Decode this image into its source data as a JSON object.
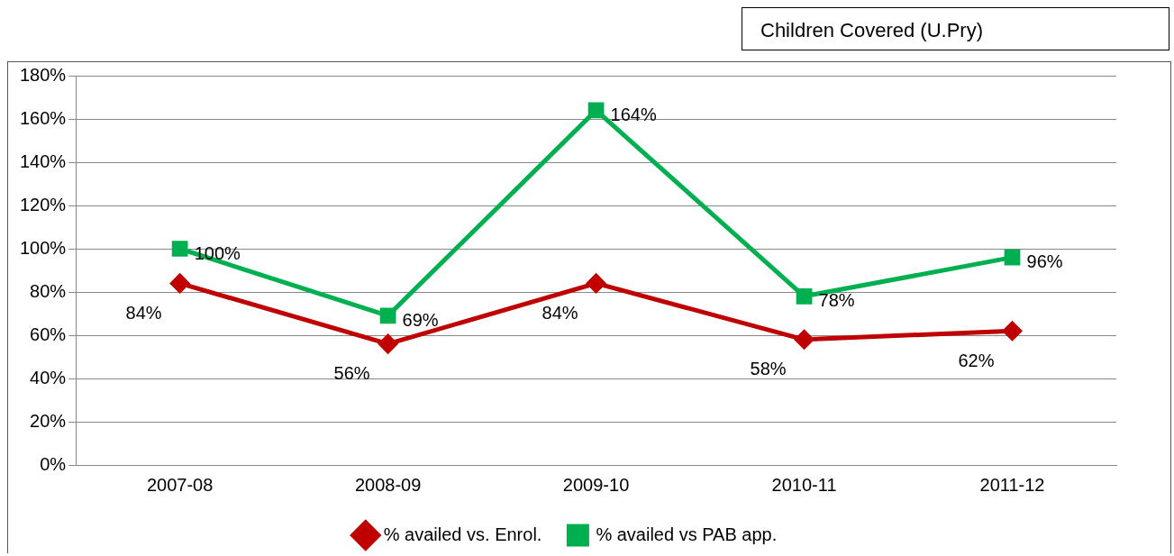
{
  "chart_data": {
    "type": "line",
    "title": "Children Covered (U.Pry)",
    "categories": [
      "2007-08",
      "2008-09",
      "2009-10",
      "2010-11",
      "2011-12"
    ],
    "series": [
      {
        "name": "% availed vs. Enrol.",
        "color": "#c00000",
        "values": [
          84,
          56,
          84,
          58,
          62
        ],
        "value_labels": [
          "84%",
          "56%",
          "84%",
          "58%",
          "62%"
        ],
        "marker": "diamond"
      },
      {
        "name": "% availed vs PAB app.",
        "color": "#00b050",
        "values": [
          100,
          69,
          164,
          78,
          96
        ],
        "value_labels": [
          "100%",
          "69%",
          "164%",
          "78%",
          "96%"
        ],
        "marker": "square"
      }
    ],
    "ylim": [
      0,
      180
    ],
    "yticks": [
      {
        "value": 0,
        "label": "0%"
      },
      {
        "value": 20,
        "label": "20%"
      },
      {
        "value": 40,
        "label": "40%"
      },
      {
        "value": 60,
        "label": "60%"
      },
      {
        "value": 80,
        "label": "80%"
      },
      {
        "value": 100,
        "label": "100%"
      },
      {
        "value": 120,
        "label": "120%"
      },
      {
        "value": 140,
        "label": "140%"
      },
      {
        "value": 160,
        "label": "160%"
      },
      {
        "value": 180,
        "label": "180%"
      }
    ],
    "grid": "y",
    "legend": "bottom",
    "line_style": "solid"
  }
}
